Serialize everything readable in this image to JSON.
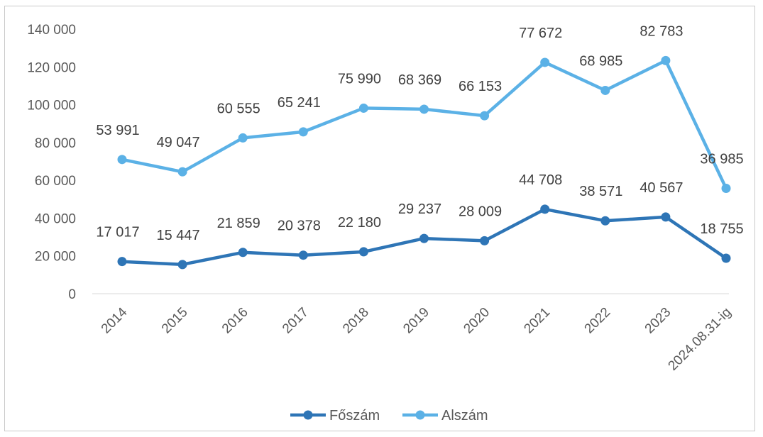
{
  "chart_data": {
    "type": "line",
    "stacked": true,
    "categories": [
      "2014",
      "2015",
      "2016",
      "2017",
      "2018",
      "2019",
      "2020",
      "2021",
      "2022",
      "2023",
      "2024.08.31-ig"
    ],
    "series": [
      {
        "name": "Főszám",
        "color": "#2E75B6",
        "values": [
          17017,
          15447,
          21859,
          20378,
          22180,
          29237,
          28009,
          44708,
          38571,
          40567,
          18755
        ]
      },
      {
        "name": "Alszám",
        "color": "#5BB1E6",
        "values": [
          53991,
          49047,
          60555,
          65241,
          75990,
          68369,
          66153,
          77672,
          68985,
          82783,
          36985
        ]
      }
    ],
    "data_labels": {
      "Főszám": [
        "17 017",
        "15 447",
        "21 859",
        "20 378",
        "22 180",
        "29 237",
        "28 009",
        "44 708",
        "38 571",
        "40 567",
        "18 755"
      ],
      "Alszám": [
        "53 991",
        "49 047",
        "60 555",
        "65 241",
        "75 990",
        "68 369",
        "66 153",
        "77 672",
        "68 985",
        "82 783",
        "36 985"
      ]
    },
    "y_ticks": [
      "0",
      "20 000",
      "40 000",
      "60 000",
      "80 000",
      "100 000",
      "120 000",
      "140 000"
    ],
    "ylim": [
      0,
      140000
    ],
    "grid": false,
    "legend_position": "bottom"
  }
}
